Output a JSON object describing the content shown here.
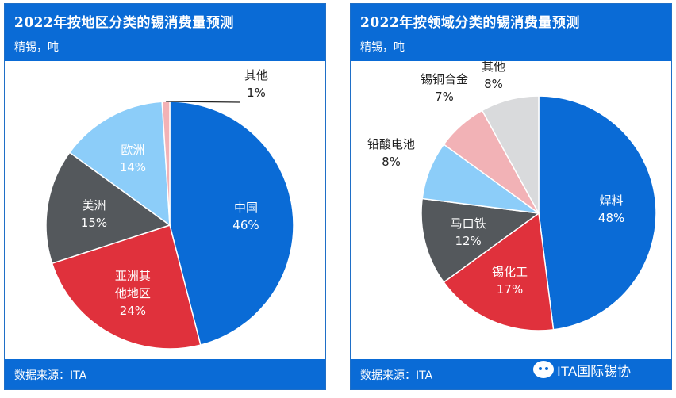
{
  "colors": {
    "header_bg": "#0a6bd6",
    "slice_blue": "#0a6bd6",
    "slice_red": "#e0313c",
    "slice_gray": "#54585c",
    "slice_lightblue": "#8ccdf9",
    "slice_pink": "#f2b2b6",
    "slice_lightgray": "#d9dadc"
  },
  "watermark": {
    "text": "ITA国际锡协",
    "icon": "wechat-icon"
  },
  "chart_data": [
    {
      "type": "pie",
      "title": "2022年按地区分类的锡消费量预测",
      "subtitle": "精锡，吨",
      "source": "数据来源：ITA",
      "slices": [
        {
          "label": "中国",
          "pct_text": "46%",
          "value": 46,
          "color": "#0a6bd6"
        },
        {
          "label": "亚洲其\n他地区",
          "pct_text": "24%",
          "value": 24,
          "color": "#e0313c"
        },
        {
          "label": "美洲",
          "pct_text": "15%",
          "value": 15,
          "color": "#54585c"
        },
        {
          "label": "欧洲",
          "pct_text": "14%",
          "value": 14,
          "color": "#8ccdf9"
        },
        {
          "label": "其他",
          "pct_text": "1%",
          "value": 1,
          "color": "#f2b2b6"
        }
      ]
    },
    {
      "type": "pie",
      "title": "2022年按领域分类的锡消费量预测",
      "subtitle": "精锡，吨",
      "source": "数据来源：ITA",
      "slices": [
        {
          "label": "焊料",
          "pct_text": "48%",
          "value": 48,
          "color": "#0a6bd6"
        },
        {
          "label": "锡化工",
          "pct_text": "17%",
          "value": 17,
          "color": "#e0313c"
        },
        {
          "label": "马口铁",
          "pct_text": "12%",
          "value": 12,
          "color": "#54585c"
        },
        {
          "label": "铅酸电池",
          "pct_text": "8%",
          "value": 8,
          "color": "#8ccdf9"
        },
        {
          "label": "锡铜合金",
          "pct_text": "7%",
          "value": 7,
          "color": "#f2b2b6"
        },
        {
          "label": "其他",
          "pct_text": "8%",
          "value": 8,
          "color": "#d9dadc"
        }
      ]
    }
  ]
}
